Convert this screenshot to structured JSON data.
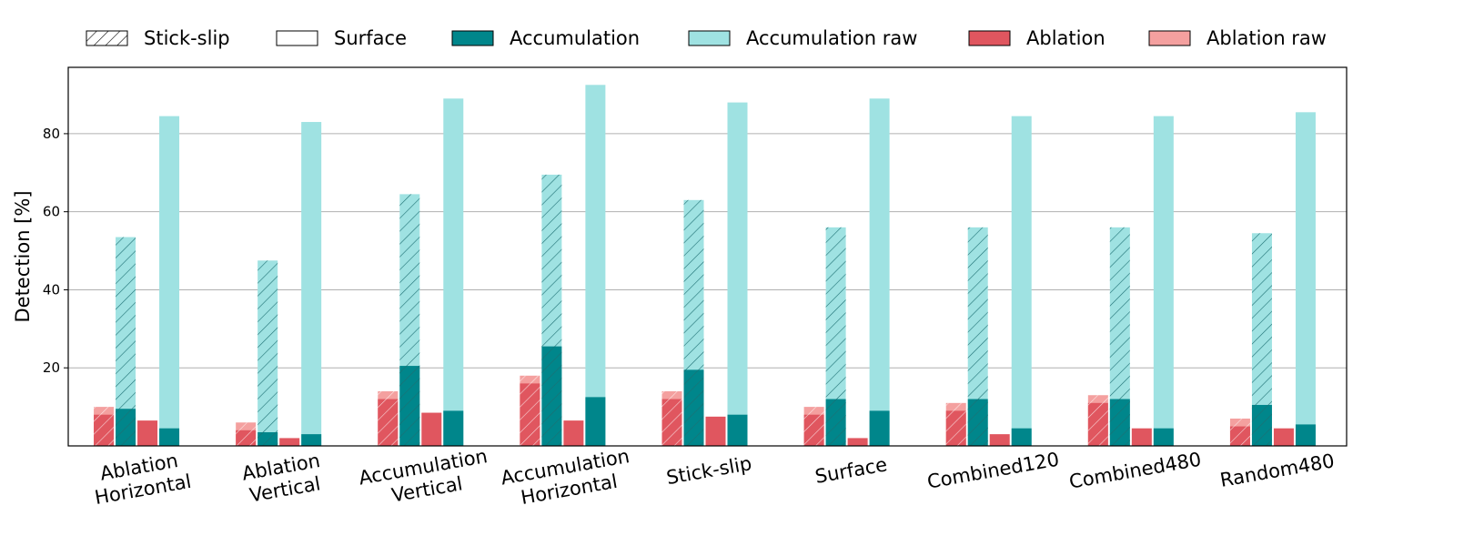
{
  "chart_data": {
    "type": "bar",
    "xlabel": "",
    "ylabel": "Detection [%]",
    "ylim": [
      0,
      97
    ],
    "yticks": [
      20,
      40,
      60,
      80
    ],
    "grid": "horizontal",
    "legend_position": "top",
    "legend": [
      {
        "key": "stick_slip",
        "label": "Stick-slip",
        "style": "hatch"
      },
      {
        "key": "surface",
        "label": "Surface",
        "style": "empty"
      },
      {
        "key": "accumulation",
        "label": "Accumulation",
        "color": "#00868b"
      },
      {
        "key": "accumulation_raw",
        "label": "Accumulation raw",
        "color": "#9fe2e2"
      },
      {
        "key": "ablation",
        "label": "Ablation",
        "color": "#e0565f"
      },
      {
        "key": "ablation_raw",
        "label": "Ablation raw",
        "color": "#f4a09f"
      }
    ],
    "categories": [
      {
        "label": [
          "Ablation",
          "Horizontal"
        ]
      },
      {
        "label": [
          "Ablation",
          "Vertical"
        ]
      },
      {
        "label": [
          "Accumulation",
          "Vertical"
        ]
      },
      {
        "label": [
          "Accumulation",
          "Horizontal"
        ]
      },
      {
        "label": [
          "Stick-slip"
        ]
      },
      {
        "label": [
          "Surface"
        ]
      },
      {
        "label": [
          "Combined120"
        ]
      },
      {
        "label": [
          "Combined480"
        ]
      },
      {
        "label": [
          "Random480"
        ]
      }
    ],
    "bar_groups": [
      {
        "name": "Stick-slip",
        "hatched": true,
        "series": {
          "ablation": [
            8.0,
            4.0,
            12.0,
            16.0,
            12.0,
            8.0,
            9.0,
            11.0,
            5.0
          ],
          "ablation_raw": [
            10.0,
            6.0,
            14.0,
            18.0,
            14.0,
            10.0,
            11.0,
            13.0,
            7.0
          ],
          "accumulation": [
            9.5,
            3.5,
            20.5,
            25.5,
            19.5,
            12.0,
            12.0,
            12.0,
            10.5
          ],
          "accumulation_raw": [
            53.5,
            47.5,
            64.5,
            69.5,
            63.0,
            56.0,
            56.0,
            56.0,
            54.5
          ]
        }
      },
      {
        "name": "Surface",
        "hatched": false,
        "series": {
          "ablation": [
            6.5,
            2.0,
            8.5,
            6.5,
            7.5,
            2.0,
            3.0,
            4.5,
            4.5
          ],
          "ablation_raw": [
            6.5,
            2.0,
            8.5,
            6.5,
            7.5,
            2.0,
            3.0,
            4.5,
            4.5
          ],
          "accumulation": [
            4.5,
            3.0,
            9.0,
            12.5,
            8.0,
            9.0,
            4.5,
            4.5,
            5.5
          ],
          "accumulation_raw": [
            84.5,
            83.0,
            89.0,
            92.5,
            88.0,
            89.0,
            84.5,
            84.5,
            85.5
          ]
        }
      }
    ]
  }
}
